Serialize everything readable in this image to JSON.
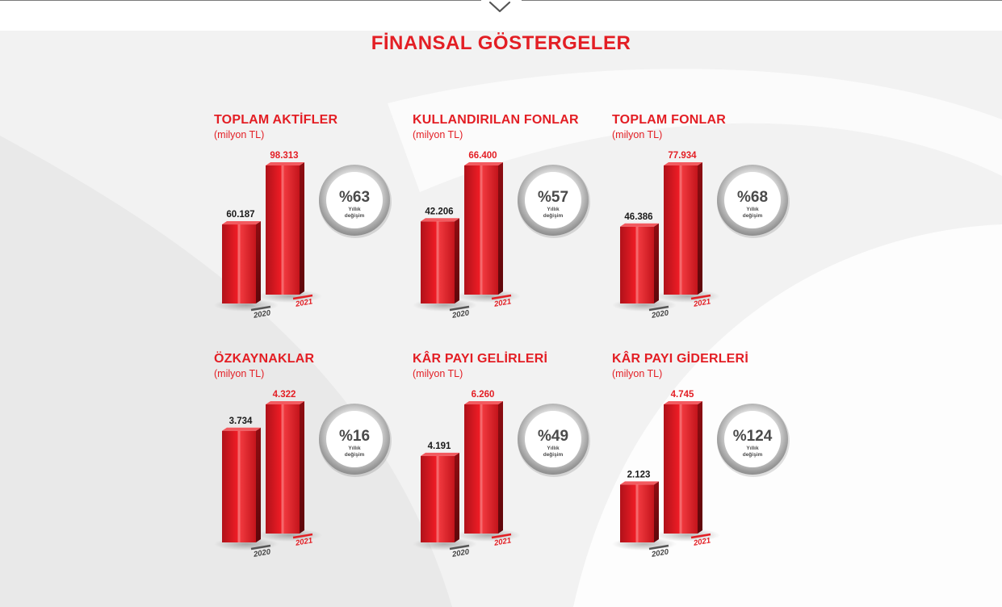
{
  "page_title": "FİNANSAL GÖSTERGELER",
  "colors": {
    "accent": "#e31e24",
    "bar_dark": "#7d0b0f",
    "badge_ring": "#9b9b9b",
    "text_dark": "#4a4a4a"
  },
  "icons": {
    "scroll_down": "chevron-down-icon"
  },
  "chart_data": [
    {
      "type": "bar",
      "title": "TOPLAM AKTİFLER",
      "subtitle": "(milyon TL)",
      "categories": [
        "2020",
        "2021"
      ],
      "values": [
        60187,
        98313
      ],
      "value_labels": [
        "60.187",
        "98.313"
      ],
      "change_pct": "%63",
      "change_label": [
        "Yıllık",
        "değişim"
      ]
    },
    {
      "type": "bar",
      "title": "KULLANDIRILAN FONLAR",
      "subtitle": "(milyon TL)",
      "categories": [
        "2020",
        "2021"
      ],
      "values": [
        42206,
        66400
      ],
      "value_labels": [
        "42.206",
        "66.400"
      ],
      "change_pct": "%57",
      "change_label": [
        "Yıllık",
        "değişim"
      ]
    },
    {
      "type": "bar",
      "title": "TOPLAM FONLAR",
      "subtitle": "(milyon TL)",
      "categories": [
        "2020",
        "2021"
      ],
      "values": [
        46386,
        77934
      ],
      "value_labels": [
        "46.386",
        "77.934"
      ],
      "change_pct": "%68",
      "change_label": [
        "Yıllık",
        "değişim"
      ]
    },
    {
      "type": "bar",
      "title": "ÖZKAYNAKLAR",
      "subtitle": "(milyon TL)",
      "categories": [
        "2020",
        "2021"
      ],
      "values": [
        3734,
        4322
      ],
      "value_labels": [
        "3.734",
        "4.322"
      ],
      "change_pct": "%16",
      "change_label": [
        "Yıllık",
        "değişim"
      ]
    },
    {
      "type": "bar",
      "title": "KÂR PAYI GELİRLERİ",
      "subtitle": "(milyon TL)",
      "categories": [
        "2020",
        "2021"
      ],
      "values": [
        4191,
        6260
      ],
      "value_labels": [
        "4.191",
        "6.260"
      ],
      "change_pct": "%49",
      "change_label": [
        "Yıllık",
        "değişim"
      ]
    },
    {
      "type": "bar",
      "title": "KÂR PAYI GİDERLERİ",
      "subtitle": "(milyon TL)",
      "categories": [
        "2020",
        "2021"
      ],
      "values": [
        2123,
        4745
      ],
      "value_labels": [
        "2.123",
        "4.745"
      ],
      "change_pct": "%124",
      "change_label": [
        "Yıllık",
        "değişim"
      ]
    }
  ]
}
